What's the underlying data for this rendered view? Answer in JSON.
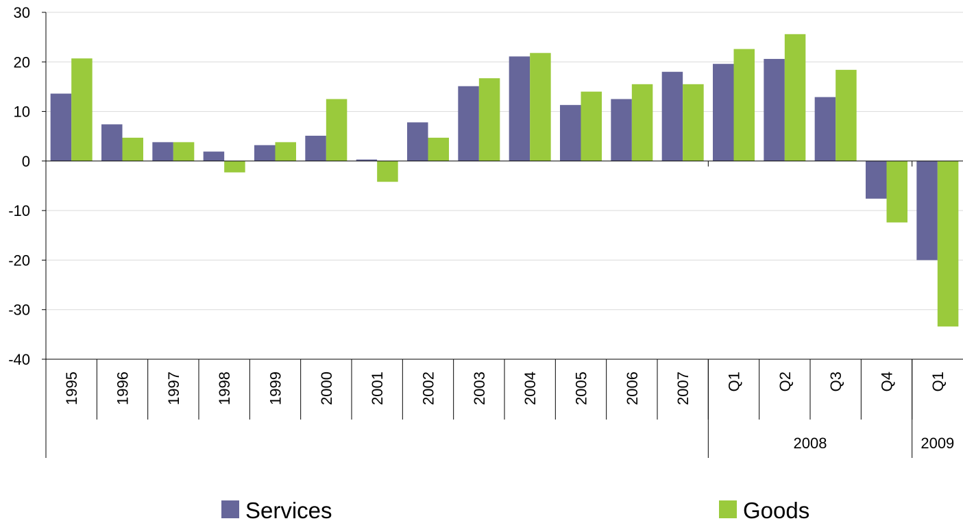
{
  "chart_data": {
    "type": "bar",
    "categories": [
      "1995",
      "1996",
      "1997",
      "1998",
      "1999",
      "2000",
      "2001",
      "2002",
      "2003",
      "2004",
      "2005",
      "2006",
      "2007",
      "Q1",
      "Q2",
      "Q3",
      "Q4",
      "Q1"
    ],
    "category_groups": [
      {
        "label": "",
        "count": 13
      },
      {
        "label": "2008",
        "count": 4
      },
      {
        "label": "2009",
        "count": 1
      }
    ],
    "series": [
      {
        "name": "Services",
        "color": "#66669a",
        "values": [
          13.6,
          7.4,
          3.8,
          1.9,
          3.2,
          5.1,
          0.3,
          7.8,
          15.1,
          21.1,
          11.3,
          12.5,
          18.0,
          19.6,
          20.6,
          12.9,
          -7.6,
          -20.0
        ]
      },
      {
        "name": "Goods",
        "color": "#9aca3c",
        "values": [
          20.7,
          4.7,
          3.8,
          -2.3,
          3.8,
          12.5,
          -4.2,
          4.7,
          16.7,
          21.8,
          14.0,
          15.5,
          15.5,
          22.6,
          25.6,
          18.4,
          -12.4,
          -33.4
        ]
      }
    ],
    "ylim": [
      -40,
      30
    ],
    "yticks": [
      "30",
      "20",
      "10",
      "0",
      "-10",
      "-20",
      "-30",
      "-40"
    ],
    "ytick_values": [
      30,
      20,
      10,
      0,
      -10,
      -20,
      -30,
      -40
    ],
    "grid": true,
    "legend_position": "bottom",
    "title": "",
    "xlabel": "",
    "ylabel": ""
  }
}
